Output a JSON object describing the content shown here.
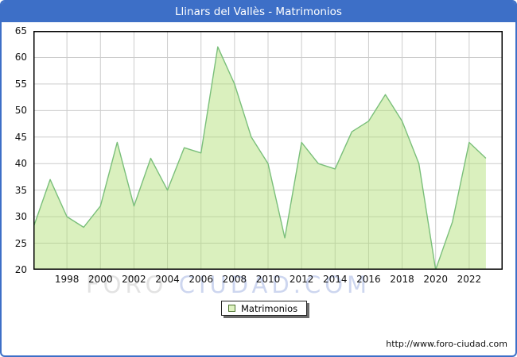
{
  "window": {
    "title": "Llinars del Vallès - Matrimonios"
  },
  "legend": {
    "label": "Matrimonios"
  },
  "watermark": {
    "part1": "FORO",
    "part2": "CIUDAD.COM"
  },
  "footer": {
    "url_text": "http://www.foro-ciudad.com"
  },
  "colors": {
    "titlebar_bg": "#3d6fc7",
    "frame_border": "#3d6fc7",
    "title_text": "#ffffff",
    "plot_border": "#000000",
    "gridline": "#cccccc",
    "series_line": "#7abf7a",
    "series_fill_rgba": "rgba(173,222,110,0.45)",
    "legend_square_fill": "#dff3c2",
    "legend_square_border": "#4c722c",
    "watermark_gray": "#e3e3e3",
    "watermark_blue": "#cdd6ef"
  },
  "chart_data": {
    "type": "area",
    "title": "Llinars del Vallès - Matrimonios",
    "x_start": 1996,
    "x": [
      1996,
      1997,
      1998,
      1999,
      2000,
      2001,
      2002,
      2003,
      2004,
      2005,
      2006,
      2007,
      2008,
      2009,
      2010,
      2011,
      2012,
      2013,
      2014,
      2015,
      2016,
      2017,
      2018,
      2019,
      2020,
      2021,
      2022,
      2023
    ],
    "values": [
      28,
      37,
      30,
      28,
      32,
      44,
      32,
      41,
      35,
      43,
      42,
      62,
      55,
      45,
      40,
      26,
      44,
      40,
      39,
      46,
      48,
      53,
      48,
      40,
      20,
      29,
      44,
      41
    ],
    "series_name": "Matrimonios",
    "xlabel": "",
    "ylabel": "",
    "ylim": [
      20,
      65
    ],
    "ytick_step": 5,
    "ytick_labels": [
      "20",
      "25",
      "30",
      "35",
      "40",
      "45",
      "50",
      "55",
      "60",
      "65"
    ],
    "xtick_labels": [
      "1998",
      "2000",
      "2002",
      "2004",
      "2006",
      "2008",
      "2010",
      "2012",
      "2014",
      "2016",
      "2018",
      "2020",
      "2022"
    ],
    "xlim": [
      1996,
      2024
    ],
    "grid": true,
    "legend_position": "bottom-center"
  }
}
